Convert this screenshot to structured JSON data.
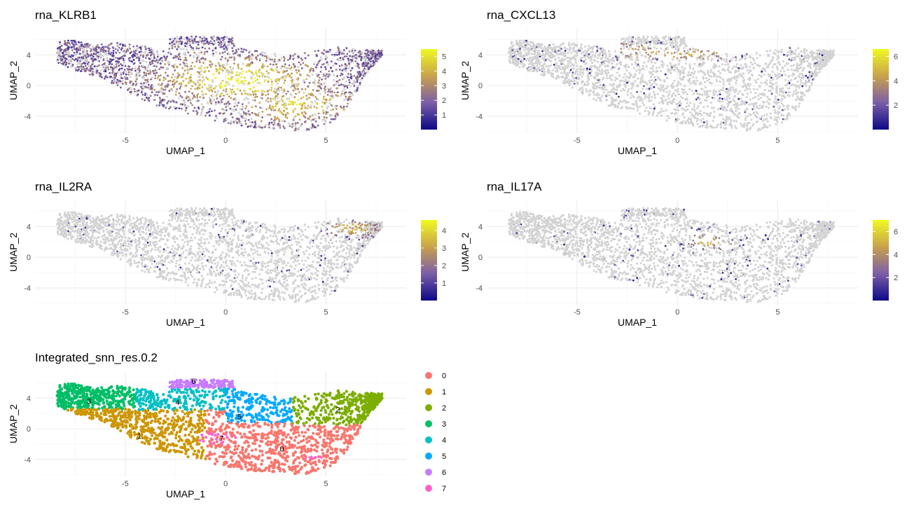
{
  "chart_data": [
    {
      "type": "scatter",
      "title": "rna_KLRB1",
      "xlabel": "UMAP_1",
      "ylabel": "UMAP_2",
      "xlim": [
        -9.5,
        9
      ],
      "ylim": [
        -6.2,
        7.5
      ],
      "xticks": [
        "-5",
        "0",
        "5"
      ],
      "xtick_values": [
        -5,
        0,
        5
      ],
      "yticks": [
        "4",
        "0",
        "-4"
      ],
      "ytick_values": [
        4,
        0,
        -4
      ],
      "grid": true,
      "colorbar": {
        "min": 0,
        "max": 5.5,
        "ticks": [
          "1",
          "2",
          "3",
          "4",
          "5"
        ],
        "tick_values": [
          1,
          2,
          3,
          4,
          5
        ],
        "colors": [
          "#0d0887",
          "#7b5ea7",
          "#c9a24c",
          "#f0f921"
        ]
      },
      "expression": "broad",
      "hotspots": [
        {
          "x": 0.5,
          "y": 0.8,
          "sx": 3.5,
          "sy": 2.5,
          "level": 0.85
        },
        {
          "x": 3.5,
          "y": -2.5,
          "sx": 2.5,
          "sy": 2.0,
          "level": 0.7
        }
      ]
    },
    {
      "type": "scatter",
      "title": "rna_CXCL13",
      "xlabel": "UMAP_1",
      "ylabel": "UMAP_2",
      "xlim": [
        -9.5,
        9
      ],
      "ylim": [
        -6.2,
        7.5
      ],
      "xticks": [
        "-5",
        "0",
        "5"
      ],
      "xtick_values": [
        -5,
        0,
        5
      ],
      "yticks": [
        "4",
        "0",
        "-4"
      ],
      "ytick_values": [
        4,
        0,
        -4
      ],
      "grid": true,
      "colorbar": {
        "min": 0,
        "max": 6.6,
        "ticks": [
          "2",
          "4",
          "6"
        ],
        "tick_values": [
          2,
          4,
          6
        ],
        "colors": [
          "#0d0887",
          "#7b5ea7",
          "#c9a24c",
          "#f0f921"
        ]
      },
      "expression": "sparse",
      "hotspots": [
        {
          "x": 0.0,
          "y": 4.1,
          "sx": 3.0,
          "sy": 0.7,
          "level": 0.8
        },
        {
          "x": -2.0,
          "y": 4.8,
          "sx": 1.0,
          "sy": 0.8,
          "level": 0.7
        }
      ]
    },
    {
      "type": "scatter",
      "title": "rna_IL2RA",
      "xlabel": "UMAP_1",
      "ylabel": "UMAP_2",
      "xlim": [
        -9.5,
        9
      ],
      "ylim": [
        -6.2,
        7.5
      ],
      "xticks": [
        "-5",
        "0",
        "5"
      ],
      "xtick_values": [
        -5,
        0,
        5
      ],
      "yticks": [
        "4",
        "0",
        "-4"
      ],
      "ytick_values": [
        4,
        0,
        -4
      ],
      "grid": true,
      "colorbar": {
        "min": 0,
        "max": 4.6,
        "ticks": [
          "1",
          "2",
          "3",
          "4"
        ],
        "tick_values": [
          1,
          2,
          3,
          4
        ],
        "colors": [
          "#0d0887",
          "#7b5ea7",
          "#c9a24c",
          "#f0f921"
        ]
      },
      "expression": "sparse",
      "hotspots": [
        {
          "x": 6.3,
          "y": 3.8,
          "sx": 1.5,
          "sy": 1.2,
          "level": 0.75
        }
      ]
    },
    {
      "type": "scatter",
      "title": "rna_IL17A",
      "xlabel": "UMAP_1",
      "ylabel": "UMAP_2",
      "xlim": [
        -9.5,
        9
      ],
      "ylim": [
        -6.2,
        7.5
      ],
      "xticks": [
        "-5",
        "0",
        "5"
      ],
      "xtick_values": [
        -5,
        0,
        5
      ],
      "yticks": [
        "4",
        "0",
        "-4"
      ],
      "ytick_values": [
        4,
        0,
        -4
      ],
      "grid": true,
      "colorbar": {
        "min": 0,
        "max": 7,
        "ticks": [
          "2",
          "4",
          "6"
        ],
        "tick_values": [
          2,
          4,
          6
        ],
        "colors": [
          "#0d0887",
          "#7b5ea7",
          "#c9a24c",
          "#f0f921"
        ]
      },
      "expression": "sparse",
      "hotspots": [
        {
          "x": 1.5,
          "y": 2.0,
          "sx": 1.2,
          "sy": 1.0,
          "level": 0.75
        }
      ]
    },
    {
      "type": "scatter",
      "title": "Integrated_snn_res.0.2",
      "xlabel": "UMAP_1",
      "ylabel": "UMAP_2",
      "xlim": [
        -9.5,
        9
      ],
      "ylim": [
        -6.2,
        7.5
      ],
      "xticks": [
        "-5",
        "0",
        "5"
      ],
      "xtick_values": [
        -5,
        0,
        5
      ],
      "yticks": [
        "4",
        "0",
        "-4"
      ],
      "ytick_values": [
        4,
        0,
        -4
      ],
      "grid": true,
      "legend_position": "right",
      "clusters": [
        {
          "name": "0",
          "color": "#f8766d",
          "label_x": 2.8,
          "label_y": -2.6
        },
        {
          "name": "1",
          "color": "#cd9600",
          "label_x": -4.3,
          "label_y": -0.9
        },
        {
          "name": "2",
          "color": "#7cae00",
          "label_x": 5.6,
          "label_y": 2.5
        },
        {
          "name": "3",
          "color": "#00be67",
          "label_x": -6.8,
          "label_y": 3.6
        },
        {
          "name": "4",
          "color": "#00bfc4",
          "label_x": -2.4,
          "label_y": 3.5
        },
        {
          "name": "5",
          "color": "#00a9ff",
          "label_x": 0.7,
          "label_y": 1.6
        },
        {
          "name": "6",
          "color": "#c77cff",
          "label_x": -1.6,
          "label_y": 6.2
        },
        {
          "name": "7",
          "color": "#ff61cc",
          "label_x": -0.2,
          "label_y": -1.2
        }
      ]
    }
  ]
}
